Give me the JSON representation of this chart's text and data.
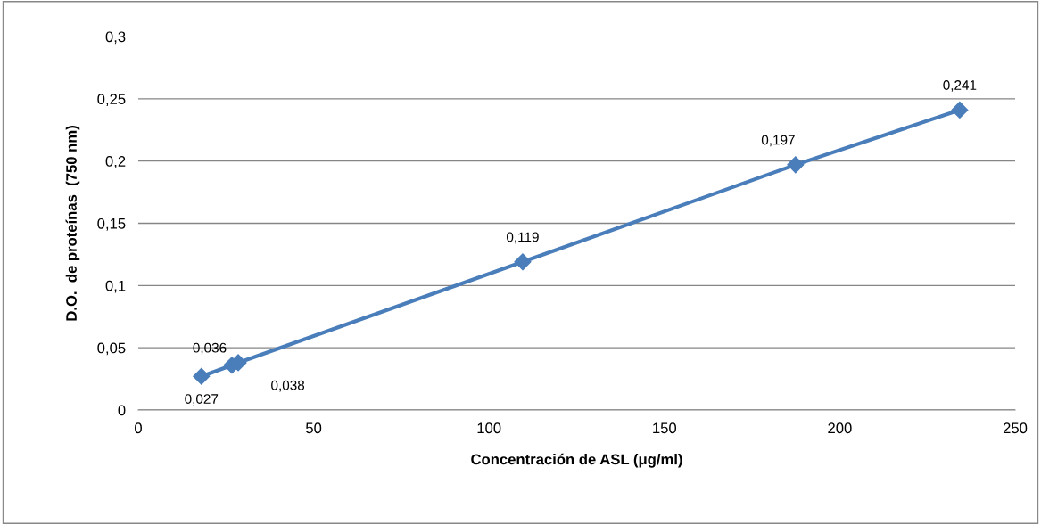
{
  "chart_data": {
    "type": "line",
    "xlabel": "Concentración de ASL (μg/ml)",
    "ylabel": "D.O.  de proteínas  (750 nm)",
    "x": [
      18,
      26.7,
      28.5,
      109.6,
      187.4,
      234.2
    ],
    "series": [
      {
        "color": "#4a7ebb",
        "values": [
          0.027,
          0.036,
          0.038,
          0.119,
          0.197,
          0.241
        ],
        "value_labels": [
          "0,027",
          "0,036",
          "0,038",
          "0,119",
          "0,197",
          "0,241"
        ]
      }
    ],
    "xlim": [
      0,
      250
    ],
    "xticks": [
      0,
      50,
      100,
      150,
      200,
      250
    ],
    "ylim": [
      0,
      0.3
    ],
    "yticks": [
      {
        "value": 0,
        "label": "0"
      },
      {
        "value": 0.05,
        "label": "0,05"
      },
      {
        "value": 0.1,
        "label": "0,1"
      },
      {
        "value": 0.15,
        "label": "0,15"
      },
      {
        "value": 0.2,
        "label": "0,2"
      },
      {
        "value": 0.25,
        "label": "0,25"
      },
      {
        "value": 0.3,
        "label": "0,3"
      }
    ],
    "grid": "y",
    "marker": "diamond",
    "line_style": "solid",
    "legend": false
  }
}
